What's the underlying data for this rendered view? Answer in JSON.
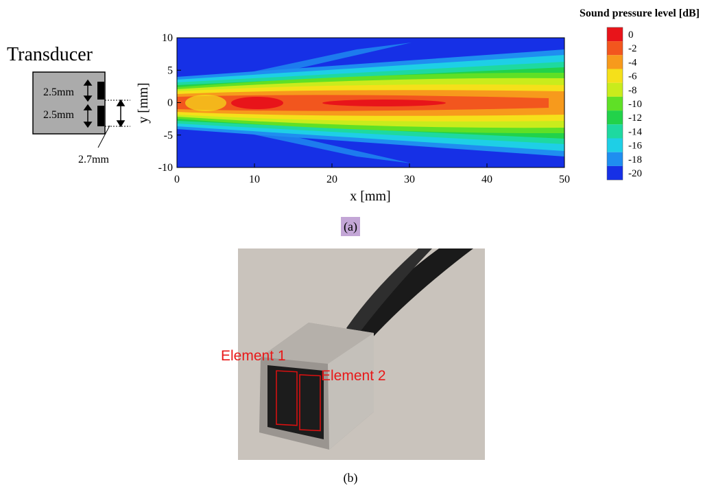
{
  "transducer": {
    "title": "Transducer",
    "element_1_height": "2.5mm",
    "element_2_height": "2.5mm",
    "spacing": "2.7mm"
  },
  "plot": {
    "xlabel": "x [mm]",
    "ylabel": "y [mm]",
    "xlim": [
      0,
      50
    ],
    "ylim": [
      -10,
      10
    ],
    "xticks": [
      0,
      10,
      20,
      30,
      40,
      50
    ],
    "yticks": [
      -10,
      -5,
      0,
      5,
      10
    ]
  },
  "colorbar": {
    "title": "Sound pressure level [dB]",
    "ticks": [
      0,
      -2,
      -4,
      -6,
      -8,
      -10,
      -12,
      -14,
      -16,
      -18,
      -20
    ],
    "colors": [
      "#e8141a",
      "#f2561e",
      "#f79a1c",
      "#f5e01a",
      "#c9ec1c",
      "#5fe026",
      "#22d24a",
      "#1ed9a0",
      "#1ecfe6",
      "#1f8ef0",
      "#1630e6"
    ]
  },
  "caption_a": "(a)",
  "photo": {
    "labels": [
      "Element 1",
      "Element 2"
    ]
  },
  "caption_b": "(b)"
}
